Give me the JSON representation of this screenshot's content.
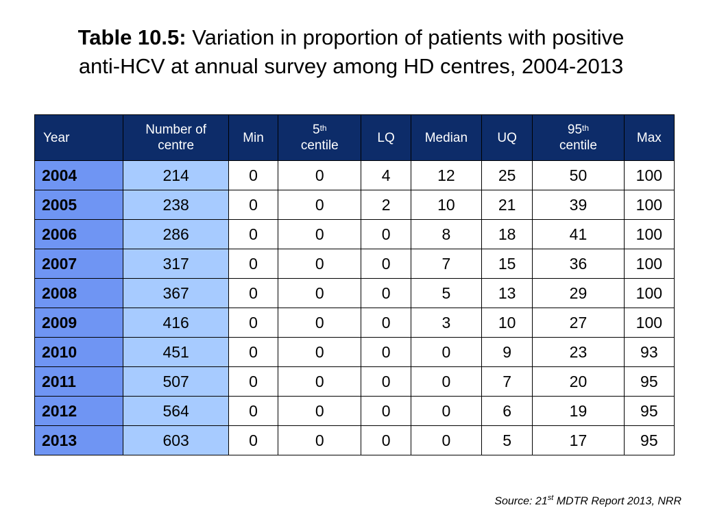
{
  "title": {
    "label": "Table 10.5:",
    "line1": "Variation in proportion of patients with positive",
    "line2": "anti-HCV at annual survey among HD centres, 2004-2013"
  },
  "table": {
    "headers": {
      "year": "Year",
      "centre_line1": "Number of",
      "centre_line2": "centre",
      "min": "Min",
      "p5_num": "5",
      "p5_sup": "th",
      "p5_word": "centile",
      "lq": "LQ",
      "median": "Median",
      "uq": "UQ",
      "p95_num": "95",
      "p95_sup": "th",
      "p95_word": "centile",
      "max": "Max"
    },
    "rows": [
      {
        "year": "2004",
        "centres": "214",
        "min": "0",
        "p5": "0",
        "lq": "4",
        "median": "12",
        "uq": "25",
        "p95": "50",
        "max": "100"
      },
      {
        "year": "2005",
        "centres": "238",
        "min": "0",
        "p5": "0",
        "lq": "2",
        "median": "10",
        "uq": "21",
        "p95": "39",
        "max": "100"
      },
      {
        "year": "2006",
        "centres": "286",
        "min": "0",
        "p5": "0",
        "lq": "0",
        "median": "8",
        "uq": "18",
        "p95": "41",
        "max": "100"
      },
      {
        "year": "2007",
        "centres": "317",
        "min": "0",
        "p5": "0",
        "lq": "0",
        "median": "7",
        "uq": "15",
        "p95": "36",
        "max": "100"
      },
      {
        "year": "2008",
        "centres": "367",
        "min": "0",
        "p5": "0",
        "lq": "0",
        "median": "5",
        "uq": "13",
        "p95": "29",
        "max": "100"
      },
      {
        "year": "2009",
        "centres": "416",
        "min": "0",
        "p5": "0",
        "lq": "0",
        "median": "3",
        "uq": "10",
        "p95": "27",
        "max": "100"
      },
      {
        "year": "2010",
        "centres": "451",
        "min": "0",
        "p5": "0",
        "lq": "0",
        "median": "0",
        "uq": "9",
        "p95": "23",
        "max": "93"
      },
      {
        "year": "2011",
        "centres": "507",
        "min": "0",
        "p5": "0",
        "lq": "0",
        "median": "0",
        "uq": "7",
        "p95": "20",
        "max": "95"
      },
      {
        "year": "2012",
        "centres": "564",
        "min": "0",
        "p5": "0",
        "lq": "0",
        "median": "0",
        "uq": "6",
        "p95": "19",
        "max": "95"
      },
      {
        "year": "2013",
        "centres": "603",
        "min": "0",
        "p5": "0",
        "lq": "0",
        "median": "0",
        "uq": "5",
        "p95": "17",
        "max": "95"
      }
    ]
  },
  "source": {
    "prefix": "Source: 21",
    "sup": "st",
    "suffix": " MDTR Report 2013, NRR"
  },
  "colors": {
    "header_bg": "#0d2c69",
    "year_col_bg": "#6f95f3",
    "centre_col_bg": "#a7cbff"
  }
}
